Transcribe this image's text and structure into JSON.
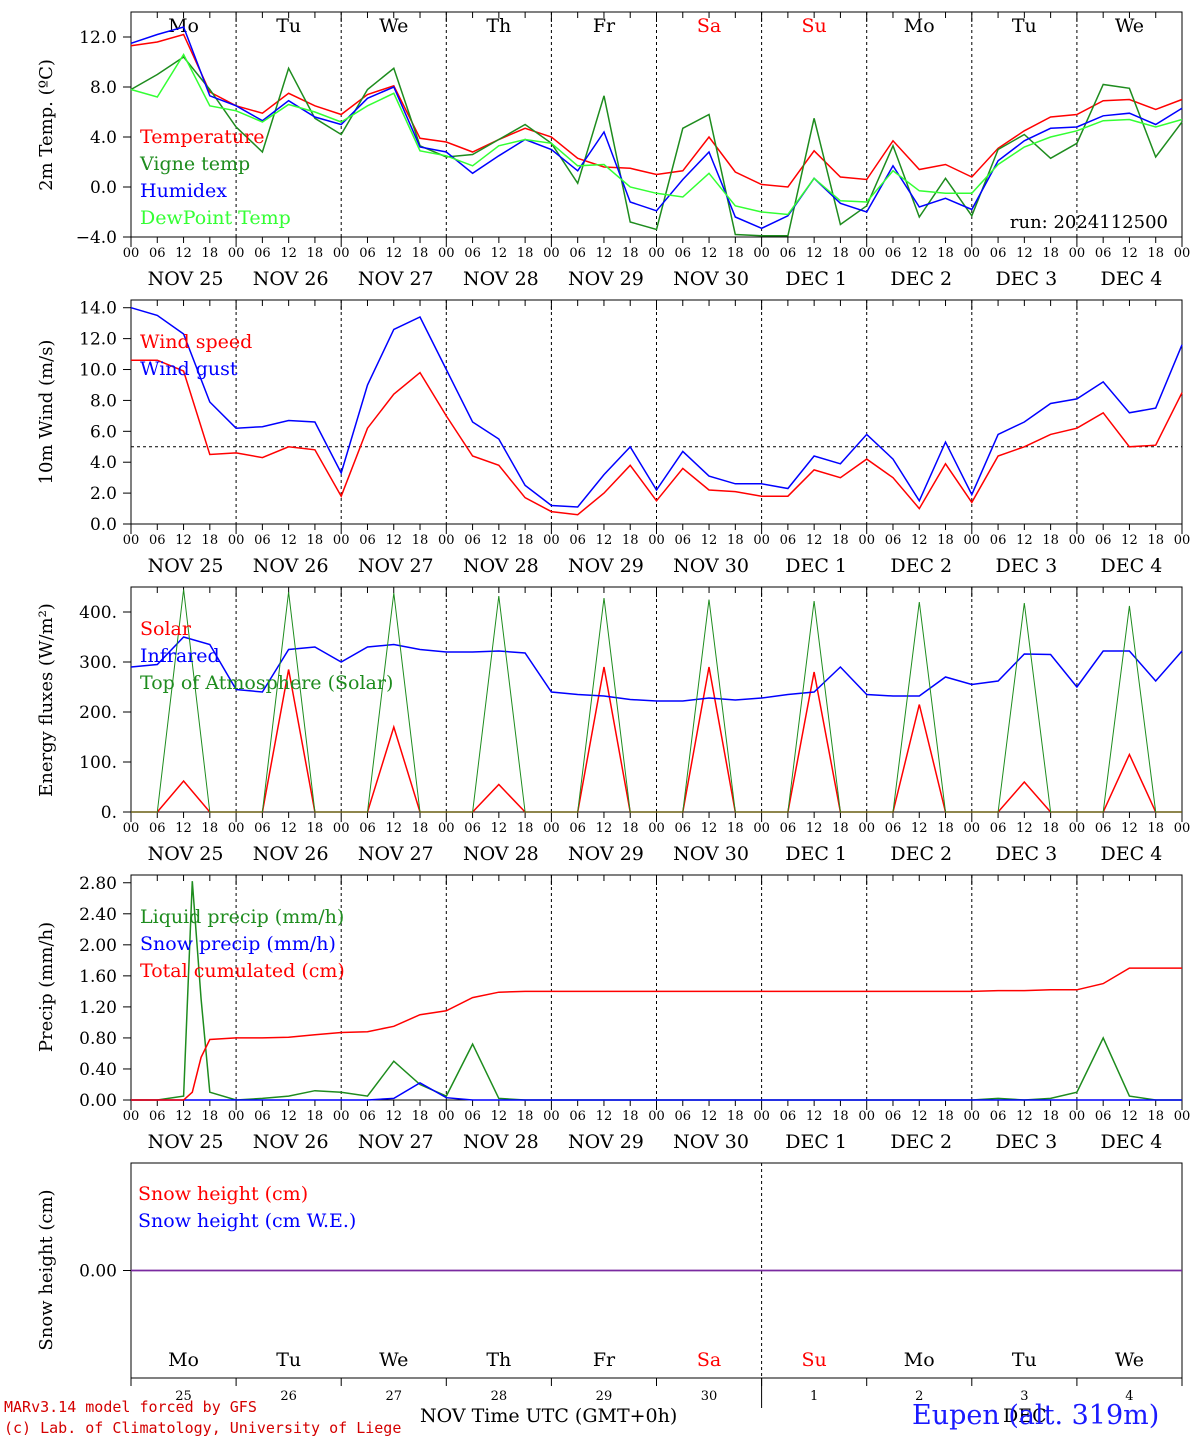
{
  "run_label": "run: 2024112500",
  "day_names": [
    "Mo",
    "Tu",
    "We",
    "Th",
    "Fr",
    "Sa",
    "Su",
    "Mo",
    "Tu",
    "We"
  ],
  "day_name_colors": [
    "#000000",
    "#000000",
    "#000000",
    "#000000",
    "#000000",
    "#ff0000",
    "#ff0000",
    "#000000",
    "#000000",
    "#000000"
  ],
  "date_labels": [
    "NOV 25",
    "NOV 26",
    "NOV 27",
    "NOV 28",
    "NOV 29",
    "NOV 30",
    "DEC  1",
    "DEC  2",
    "DEC  3",
    "DEC  4"
  ],
  "hour_ticks": [
    "00",
    "06",
    "12",
    "18"
  ],
  "hour_end": "00",
  "bottom_days": [
    "25",
    "26",
    "27",
    "28",
    "29",
    "30",
    "1",
    "2",
    "3",
    "4"
  ],
  "bottom_months": [
    "NOV",
    "DEC"
  ],
  "x_title": "Time UTC (GMT+0h)",
  "footer_model": "MARv3.14 model forced by GFS",
  "footer_lab": "(c) Lab. of Climatology, University of Liege",
  "location": "Eupen (alt. 319m)",
  "colors": {
    "red": "#ff0000",
    "green": "#1e8c1e",
    "blue": "#0000ff",
    "lightgreen": "#33ff33",
    "snow_line": "#7a2aa0"
  },
  "chart_data": [
    {
      "type": "line",
      "ylabel": "2m Temp. (ºC)",
      "yticks": [
        "12.0",
        "8.0",
        "4.0",
        "0.0",
        "−4.0"
      ],
      "ylim": [
        -4,
        14
      ],
      "x_hours": [
        0,
        6,
        12,
        18,
        24,
        30,
        36,
        42,
        48,
        54,
        60,
        66,
        72,
        78,
        84,
        90,
        96,
        102,
        108,
        114,
        120,
        126,
        132,
        138,
        144,
        150,
        156,
        162,
        168,
        174,
        180,
        186,
        192,
        198,
        204,
        210,
        216,
        222,
        228,
        234,
        240
      ],
      "series": [
        {
          "name": "Temperature",
          "color": "red",
          "values": [
            11.3,
            11.6,
            12.2,
            7.6,
            6.5,
            5.9,
            7.5,
            6.5,
            5.8,
            7.4,
            8.1,
            3.9,
            3.6,
            2.8,
            3.8,
            4.7,
            4.0,
            2.3,
            1.6,
            1.5,
            1.0,
            1.3,
            4.0,
            1.2,
            0.2,
            0.0,
            2.9,
            0.8,
            0.6,
            3.7,
            1.4,
            1.8,
            0.8,
            3.1,
            4.5,
            5.6,
            5.8,
            6.9,
            7.0,
            6.2,
            7.0
          ]
        },
        {
          "name": "Vigne temp",
          "color": "green",
          "values": [
            7.8,
            9.0,
            10.4,
            7.8,
            4.8,
            2.8,
            9.5,
            5.5,
            4.2,
            7.8,
            9.5,
            3.3,
            2.4,
            2.6,
            3.8,
            5.0,
            3.5,
            0.3,
            7.3,
            -2.8,
            -3.4,
            4.7,
            5.8,
            -3.8,
            -3.9,
            -3.9,
            5.5,
            -3.0,
            -1.5,
            3.3,
            -2.4,
            0.7,
            -2.3,
            3.0,
            4.2,
            2.3,
            3.5,
            8.2,
            7.9,
            2.4,
            5.2
          ]
        },
        {
          "name": "Humidex",
          "color": "blue",
          "values": [
            11.5,
            12.2,
            12.8,
            7.3,
            6.5,
            5.3,
            6.9,
            5.6,
            5.0,
            7.1,
            8.0,
            3.2,
            2.8,
            1.1,
            2.5,
            3.8,
            3.0,
            1.3,
            4.4,
            -1.2,
            -1.9,
            0.6,
            2.8,
            -2.4,
            -3.3,
            -2.3,
            0.7,
            -1.3,
            -2.0,
            1.7,
            -1.6,
            -0.9,
            -1.8,
            2.1,
            3.7,
            4.7,
            4.8,
            5.7,
            5.9,
            5.0,
            6.3
          ]
        },
        {
          "name": "DewPoint Temp",
          "color": "lightgreen",
          "values": [
            7.8,
            7.2,
            10.6,
            6.5,
            6.1,
            5.2,
            6.6,
            6.0,
            5.2,
            6.5,
            7.5,
            2.9,
            2.5,
            1.7,
            3.3,
            3.8,
            3.5,
            1.7,
            1.8,
            0.0,
            -0.5,
            -0.8,
            1.1,
            -1.5,
            -2.0,
            -2.2,
            0.7,
            -1.1,
            -1.2,
            1.3,
            -0.3,
            -0.5,
            -0.5,
            1.8,
            3.2,
            4.0,
            4.5,
            5.3,
            5.4,
            4.8,
            5.4
          ]
        }
      ]
    },
    {
      "type": "line",
      "ylabel": "10m Wind (m/s)",
      "yticks": [
        "14.0",
        "12.0",
        "10.0",
        "8.0",
        "6.0",
        "4.0",
        "2.0",
        "0.0"
      ],
      "ylim": [
        0,
        14.5
      ],
      "reference_line": 5.0,
      "x_hours": [
        0,
        6,
        12,
        18,
        24,
        30,
        36,
        42,
        48,
        54,
        60,
        66,
        72,
        78,
        84,
        90,
        96,
        102,
        108,
        114,
        120,
        126,
        132,
        138,
        144,
        150,
        156,
        162,
        168,
        174,
        180,
        186,
        192,
        198,
        204,
        210,
        216,
        222,
        228,
        234,
        240
      ],
      "series": [
        {
          "name": "Wind speed",
          "color": "red",
          "values": [
            10.6,
            10.6,
            9.9,
            4.5,
            4.6,
            4.3,
            5.0,
            4.8,
            1.8,
            6.2,
            8.4,
            9.8,
            7.0,
            4.4,
            3.8,
            1.7,
            0.8,
            0.6,
            2.0,
            3.8,
            1.5,
            3.6,
            2.2,
            2.1,
            1.8,
            1.8,
            3.5,
            3.0,
            4.2,
            3.0,
            1.0,
            3.9,
            1.4,
            4.4,
            5.0,
            5.8,
            6.2,
            7.2,
            5.0,
            5.1,
            8.5
          ]
        },
        {
          "name": "Wind gust",
          "color": "blue",
          "values": [
            14.0,
            13.5,
            12.3,
            7.9,
            6.2,
            6.3,
            6.7,
            6.6,
            3.3,
            9.0,
            12.6,
            13.4,
            10.0,
            6.6,
            5.5,
            2.5,
            1.2,
            1.1,
            3.2,
            5.0,
            2.2,
            4.7,
            3.1,
            2.6,
            2.6,
            2.3,
            4.4,
            3.9,
            5.8,
            4.2,
            1.5,
            5.3,
            1.9,
            5.8,
            6.6,
            7.8,
            8.1,
            9.2,
            7.2,
            7.5,
            11.6
          ]
        }
      ]
    },
    {
      "type": "line",
      "ylabel": "Energy fluxes (W/m²)",
      "yticks": [
        "400.",
        "300.",
        "200.",
        "100.",
        "0."
      ],
      "ylim": [
        0,
        450
      ],
      "x_hours": [
        0,
        6,
        12,
        18,
        24,
        30,
        36,
        42,
        48,
        54,
        60,
        66,
        72,
        78,
        84,
        90,
        96,
        102,
        108,
        114,
        120,
        126,
        132,
        138,
        144,
        150,
        156,
        162,
        168,
        174,
        180,
        186,
        192,
        198,
        204,
        210,
        216,
        222,
        228,
        234,
        240
      ],
      "series": [
        {
          "name": "Solar",
          "color": "red",
          "values": [
            0,
            0,
            62,
            0,
            0,
            0,
            285,
            0,
            0,
            0,
            170,
            0,
            0,
            0,
            55,
            0,
            0,
            0,
            290,
            0,
            0,
            0,
            290,
            0,
            0,
            0,
            280,
            0,
            0,
            0,
            215,
            0,
            0,
            0,
            60,
            0,
            0,
            0,
            115,
            0,
            0
          ]
        },
        {
          "name": "Infrared",
          "color": "blue",
          "values": [
            290,
            295,
            350,
            335,
            245,
            240,
            325,
            330,
            300,
            330,
            335,
            325,
            320,
            320,
            322,
            318,
            240,
            235,
            232,
            225,
            222,
            222,
            228,
            224,
            228,
            235,
            240,
            290,
            235,
            232,
            232,
            270,
            255,
            262,
            316,
            315,
            250,
            322,
            322,
            262,
            322
          ]
        },
        {
          "name": "Top of Atmosphere (Solar)",
          "color": "green",
          "values": [
            0,
            0,
            445,
            0,
            0,
            0,
            440,
            0,
            0,
            0,
            438,
            0,
            0,
            0,
            432,
            0,
            0,
            0,
            428,
            0,
            0,
            0,
            425,
            0,
            0,
            0,
            422,
            0,
            0,
            0,
            420,
            0,
            0,
            0,
            418,
            0,
            0,
            0,
            412,
            0,
            0
          ]
        }
      ]
    },
    {
      "type": "line",
      "ylabel": "Precip (mm/h)",
      "yticks": [
        "2.80",
        "2.40",
        "2.00",
        "1.60",
        "1.20",
        "0.80",
        "0.40",
        "0.00"
      ],
      "ylim": [
        0,
        2.9
      ],
      "x_hours": [
        0,
        6,
        12,
        14,
        16,
        18,
        24,
        30,
        36,
        42,
        48,
        54,
        60,
        66,
        72,
        78,
        84,
        90,
        96,
        102,
        108,
        114,
        120,
        126,
        132,
        138,
        144,
        150,
        156,
        162,
        168,
        174,
        180,
        186,
        192,
        198,
        204,
        210,
        216,
        222,
        228,
        234,
        240
      ],
      "series": [
        {
          "name": "Liquid precip (mm/h)",
          "color": "green",
          "values": [
            0,
            0,
            0.05,
            2.82,
            1.3,
            0.1,
            0,
            0.02,
            0.05,
            0.12,
            0.1,
            0.05,
            0.5,
            0.2,
            0.05,
            0.72,
            0.02,
            0,
            0,
            0,
            0,
            0,
            0,
            0,
            0,
            0,
            0,
            0,
            0,
            0,
            0,
            0,
            0,
            0,
            0,
            0.02,
            0,
            0.02,
            0.1,
            0.8,
            0.05,
            0,
            0
          ]
        },
        {
          "name": "Snow precip (mm/h)",
          "color": "blue",
          "values": [
            0,
            0,
            0,
            0,
            0,
            0,
            0,
            0,
            0,
            0,
            0,
            0,
            0.02,
            0.22,
            0.03,
            0,
            0,
            0,
            0,
            0,
            0,
            0,
            0,
            0,
            0,
            0,
            0,
            0,
            0,
            0,
            0,
            0,
            0,
            0,
            0,
            0,
            0,
            0,
            0,
            0,
            0,
            0,
            0
          ]
        },
        {
          "name": "Total cumulated (cm)",
          "color": "red",
          "values": [
            0,
            0,
            0,
            0.1,
            0.55,
            0.78,
            0.8,
            0.8,
            0.81,
            0.84,
            0.87,
            0.88,
            0.95,
            1.1,
            1.15,
            1.32,
            1.39,
            1.4,
            1.4,
            1.4,
            1.4,
            1.4,
            1.4,
            1.4,
            1.4,
            1.4,
            1.4,
            1.4,
            1.4,
            1.4,
            1.4,
            1.4,
            1.4,
            1.4,
            1.4,
            1.41,
            1.41,
            1.42,
            1.42,
            1.5,
            1.7,
            1.7,
            1.7
          ]
        }
      ]
    },
    {
      "type": "line",
      "ylabel": "Snow height (cm)",
      "yticks": [
        "0.00"
      ],
      "x_hours": [
        0,
        240
      ],
      "series": [
        {
          "name": "Snow height (cm)",
          "color": "red",
          "values": [
            0,
            0
          ]
        },
        {
          "name": "Snow height (cm W.E.)",
          "color": "blue",
          "values": [
            0,
            0
          ]
        }
      ]
    }
  ]
}
